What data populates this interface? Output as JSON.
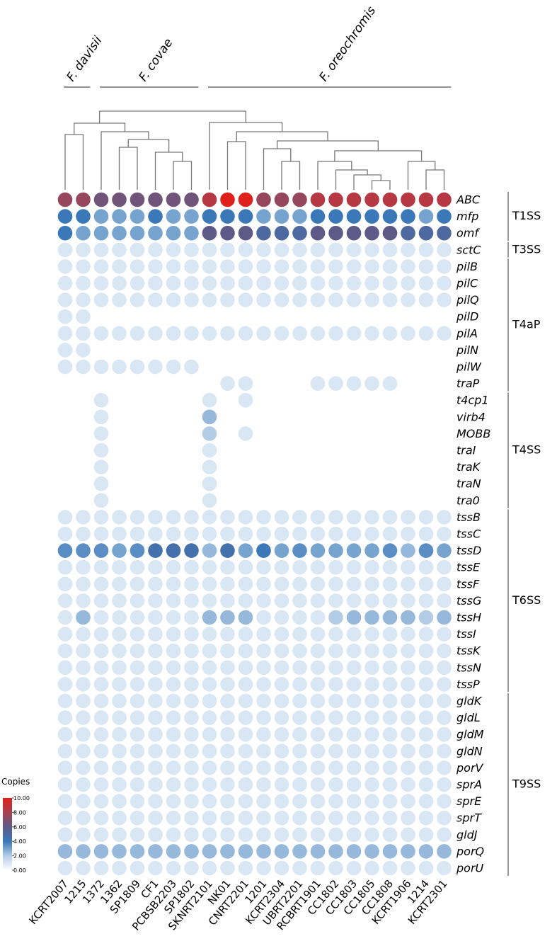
{
  "chart_data": {
    "type": "heatmap",
    "categories": [
      "KCRT2007",
      "1215",
      "1372",
      "1362",
      "SP1809",
      "CF1",
      "PCBSB2203",
      "SP1802",
      "SKNRT2101",
      "NK01",
      "CNRT2201",
      "1201",
      "KCRT2304",
      "UBRT2201",
      "RCBRT1901",
      "CC1802",
      "CC1803",
      "CC1805",
      "CC1808",
      "KCRT1906",
      "1214",
      "KCRT2301"
    ],
    "rows": [
      "ABC",
      "mfp",
      "omf",
      "sctC",
      "pilB",
      "pilC",
      "pilQ",
      "pilD",
      "pilA",
      "pilN",
      "pilW",
      "traP",
      "t4cp1",
      "virb4",
      "MOBB",
      "traI",
      "traK",
      "traN",
      "tra0",
      "tssB",
      "tssC",
      "tssD",
      "tssE",
      "tssF",
      "tssG",
      "tssH",
      "tssI",
      "tssK",
      "tssN",
      "tssP",
      "gldK",
      "gldL",
      "gldM",
      "gldN",
      "porV",
      "sprA",
      "sprE",
      "sprT",
      "gldJ",
      "porQ",
      "porU"
    ],
    "values": [
      [
        7.5,
        7.5,
        6.5,
        6.5,
        6.5,
        6.5,
        6.5,
        6.5,
        8.5,
        10,
        10,
        7.5,
        7.5,
        7.5,
        8.5,
        8.5,
        8.5,
        8.5,
        8.5,
        8.5,
        8.5,
        8.5
      ],
      [
        4,
        4,
        3,
        3,
        3,
        4,
        3,
        3,
        4,
        4,
        4,
        3,
        3,
        3,
        4,
        4,
        4,
        4,
        4,
        4,
        3,
        4
      ],
      [
        4,
        3,
        3,
        3,
        3,
        3,
        3,
        3,
        6,
        6,
        6,
        5,
        5,
        5,
        6,
        6,
        6,
        6,
        6,
        5,
        5,
        5
      ],
      [
        1,
        1,
        1,
        1,
        1,
        1,
        1,
        1,
        1,
        1,
        1,
        1,
        1,
        1,
        1,
        1,
        1,
        1,
        1,
        1,
        1,
        1
      ],
      [
        1,
        1,
        1,
        1,
        1,
        1,
        1,
        1,
        1,
        1,
        1,
        1,
        1,
        1,
        1,
        1,
        1,
        1,
        1,
        1,
        1,
        1
      ],
      [
        1,
        1,
        1,
        1,
        1,
        1,
        1,
        1,
        1,
        1,
        1,
        1,
        1,
        1,
        1,
        1,
        1,
        1,
        1,
        1,
        1,
        1
      ],
      [
        1,
        1,
        1,
        1,
        1,
        1,
        1,
        1,
        1,
        1,
        1,
        1,
        1,
        1,
        1,
        1,
        1,
        1,
        1,
        1,
        1,
        1
      ],
      [
        1,
        1,
        null,
        null,
        null,
        null,
        null,
        null,
        null,
        null,
        null,
        null,
        null,
        null,
        null,
        null,
        null,
        null,
        null,
        null,
        null,
        null
      ],
      [
        1,
        1,
        1,
        1,
        1,
        1,
        1,
        1,
        1,
        1,
        1,
        1,
        1,
        1,
        1,
        1,
        1,
        1,
        1,
        1,
        1,
        1
      ],
      [
        1,
        1,
        null,
        null,
        null,
        null,
        null,
        null,
        null,
        null,
        null,
        null,
        null,
        null,
        null,
        null,
        null,
        null,
        null,
        null,
        null,
        null
      ],
      [
        1,
        1,
        1,
        1,
        1,
        1,
        1,
        1,
        null,
        null,
        null,
        null,
        null,
        null,
        null,
        null,
        null,
        null,
        null,
        null,
        null,
        null
      ],
      [
        null,
        null,
        null,
        null,
        null,
        null,
        null,
        null,
        null,
        1,
        1,
        null,
        null,
        null,
        1,
        1,
        1,
        1,
        1,
        null,
        null,
        null
      ],
      [
        null,
        null,
        1,
        null,
        null,
        null,
        null,
        null,
        1,
        null,
        1,
        null,
        null,
        null,
        null,
        null,
        null,
        null,
        null,
        null,
        null,
        null
      ],
      [
        null,
        null,
        1,
        null,
        null,
        null,
        null,
        null,
        2.5,
        null,
        null,
        null,
        null,
        null,
        null,
        null,
        null,
        null,
        null,
        null,
        null,
        null
      ],
      [
        null,
        null,
        1,
        null,
        null,
        null,
        null,
        null,
        2,
        null,
        1,
        null,
        null,
        null,
        null,
        null,
        null,
        null,
        null,
        null,
        null,
        null
      ],
      [
        null,
        null,
        1,
        null,
        null,
        null,
        null,
        null,
        1,
        null,
        null,
        null,
        null,
        null,
        null,
        null,
        null,
        null,
        null,
        null,
        null,
        null
      ],
      [
        null,
        null,
        1,
        null,
        null,
        null,
        null,
        null,
        1,
        null,
        null,
        null,
        null,
        null,
        null,
        null,
        null,
        null,
        null,
        null,
        null,
        null
      ],
      [
        null,
        null,
        1,
        null,
        null,
        null,
        null,
        null,
        1,
        null,
        null,
        null,
        null,
        null,
        null,
        null,
        null,
        null,
        null,
        null,
        null,
        null
      ],
      [
        null,
        null,
        1,
        null,
        null,
        null,
        null,
        null,
        1,
        null,
        null,
        null,
        null,
        null,
        null,
        null,
        null,
        null,
        null,
        null,
        null,
        null
      ],
      [
        1,
        1,
        1,
        1,
        1,
        1,
        1,
        1,
        1,
        1,
        1,
        1,
        1,
        1,
        1,
        1,
        1,
        1,
        1,
        1,
        1,
        1
      ],
      [
        1,
        1,
        1,
        1,
        1,
        1,
        1,
        1,
        1,
        1,
        1,
        1,
        1,
        1,
        1,
        1,
        1,
        1,
        1,
        1,
        1,
        1
      ],
      [
        3.5,
        3.5,
        3.5,
        3,
        3.5,
        4.5,
        4.5,
        4.5,
        2.5,
        4.5,
        3,
        4,
        3,
        3.5,
        3,
        3,
        3,
        3,
        3.5,
        2.5,
        3.5,
        3
      ],
      [
        1,
        1,
        1,
        1,
        1,
        1,
        1,
        1,
        1,
        1,
        1,
        1,
        1,
        1,
        1,
        1,
        1,
        1,
        1,
        1,
        1,
        1
      ],
      [
        1,
        1,
        1,
        1,
        1,
        1,
        1,
        1,
        1,
        1,
        1,
        1,
        1,
        1,
        1,
        1,
        1,
        1,
        1,
        1,
        1,
        1
      ],
      [
        1,
        1,
        1,
        1,
        1,
        1,
        1,
        1,
        1,
        1,
        1,
        1,
        1,
        1,
        1,
        1,
        1,
        1,
        1,
        1,
        1,
        1
      ],
      [
        1,
        2.5,
        1,
        1,
        1,
        1,
        1,
        1,
        2.5,
        2.5,
        2.5,
        1,
        1,
        1,
        1,
        2,
        2.5,
        2.5,
        2.5,
        2.5,
        2,
        2.5
      ],
      [
        1,
        1,
        1,
        1,
        1,
        1,
        1,
        1,
        1,
        1,
        1,
        1,
        1,
        1,
        1,
        1,
        1,
        1,
        1,
        1,
        1,
        1
      ],
      [
        1,
        1,
        1,
        1,
        1,
        1,
        1,
        1,
        1,
        1,
        1,
        1,
        1,
        1,
        1,
        1,
        1,
        1,
        1,
        1,
        1,
        1
      ],
      [
        1,
        1,
        1,
        1,
        1,
        1,
        1,
        1,
        1,
        1,
        1,
        1,
        1,
        1,
        1,
        1,
        1,
        1,
        1,
        1,
        1,
        1
      ],
      [
        1,
        1,
        1,
        1,
        1,
        1,
        1,
        1,
        1,
        1,
        1,
        1,
        1,
        1,
        1,
        1,
        1,
        1,
        1,
        1,
        1,
        1
      ],
      [
        1,
        1,
        1,
        1,
        1,
        1,
        1,
        1,
        1,
        1,
        1,
        1,
        1,
        1,
        1,
        1,
        1,
        1,
        1,
        1,
        1,
        1
      ],
      [
        1,
        1,
        1,
        1,
        1,
        1,
        1,
        1,
        1,
        1,
        1,
        1,
        1,
        1,
        1,
        1,
        1,
        1,
        1,
        1,
        1,
        1
      ],
      [
        1,
        1,
        1,
        1,
        1,
        1,
        1,
        1,
        1,
        1,
        1,
        1,
        1,
        1,
        1,
        1,
        1,
        1,
        1,
        1,
        1,
        1
      ],
      [
        1,
        1,
        1,
        1,
        1,
        1,
        1,
        1,
        1,
        1,
        1,
        1,
        1,
        1,
        1,
        1,
        1,
        1,
        1,
        1,
        1,
        1
      ],
      [
        1,
        1,
        1,
        1,
        1,
        1,
        1,
        1,
        1,
        1,
        1,
        1,
        1,
        1,
        1,
        1,
        1,
        1,
        1,
        1,
        1,
        1
      ],
      [
        1,
        1,
        1,
        1,
        1,
        1,
        1,
        1,
        1,
        1,
        1,
        1,
        1,
        1,
        1,
        1,
        1,
        1,
        1,
        1,
        1,
        1
      ],
      [
        1,
        1,
        1,
        1,
        1,
        1,
        1,
        1,
        1,
        1,
        1,
        1,
        1,
        1,
        1,
        1,
        1,
        1,
        1,
        1,
        1,
        1
      ],
      [
        1,
        1,
        1,
        1,
        1,
        1,
        1,
        1,
        1,
        1,
        1,
        1,
        1,
        1,
        1,
        1,
        1,
        1,
        1,
        1,
        1,
        1
      ],
      [
        1,
        1,
        1,
        1,
        1,
        1,
        1,
        1,
        1,
        1,
        1,
        1,
        1,
        1,
        1,
        1,
        1,
        1,
        1,
        1,
        1,
        1
      ],
      [
        2.5,
        2.5,
        2.5,
        2.5,
        2.5,
        2.5,
        2.5,
        2.5,
        2.5,
        2.5,
        2.5,
        2.5,
        2.5,
        2.5,
        2.5,
        2.5,
        2.5,
        2.5,
        2.5,
        2.5,
        2.5,
        2.5
      ],
      [
        1,
        1,
        1,
        1,
        1,
        1,
        1,
        1,
        1,
        1,
        1,
        1,
        1,
        1,
        1,
        1,
        1,
        1,
        1,
        1,
        1,
        1
      ]
    ],
    "column_groups": [
      {
        "label": "F. davisii",
        "start": 0,
        "end": 1
      },
      {
        "label": "F. covae",
        "start": 2,
        "end": 7
      },
      {
        "label": "F. oreochromis",
        "start": 8,
        "end": 21
      }
    ],
    "row_groups": [
      {
        "label": "T1SS",
        "start": 0,
        "end": 2
      },
      {
        "label": "T3SS",
        "start": 3,
        "end": 3
      },
      {
        "label": "T4aP",
        "start": 4,
        "end": 11
      },
      {
        "label": "T4SS",
        "start": 12,
        "end": 18
      },
      {
        "label": "T6SS",
        "start": 19,
        "end": 29
      },
      {
        "label": "T9SS",
        "start": 30,
        "end": 40
      }
    ],
    "legend_title": "Copies",
    "zlim": [
      0,
      10
    ],
    "zticks": [
      {
        "value": 10,
        "label": "10.00"
      },
      {
        "value": 8,
        "label": "8.00"
      },
      {
        "value": 6,
        "label": "6.00"
      },
      {
        "value": 4,
        "label": "4.00"
      },
      {
        "value": 2,
        "label": "2.00"
      },
      {
        "value": 0,
        "label": "0.00"
      }
    ],
    "colorscale": [
      [
        0,
        "#ffffff"
      ],
      [
        2,
        "#b3cde6"
      ],
      [
        4,
        "#3b78b8"
      ],
      [
        6,
        "#5e5a88"
      ],
      [
        8,
        "#a8404f"
      ],
      [
        10,
        "#e0201a"
      ]
    ]
  }
}
